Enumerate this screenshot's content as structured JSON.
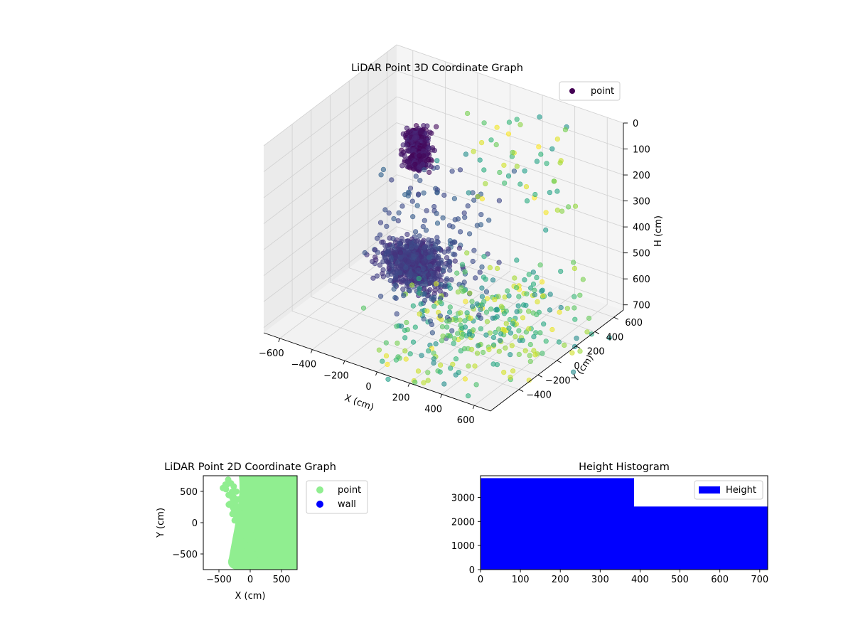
{
  "chart_data": [
    {
      "type": "scatter",
      "title": "LiDAR Point 3D Coordinate Graph",
      "xlabel": "X (cm)",
      "ylabel": "Y (cm)",
      "zlabel": "H (cm)",
      "xlim": [
        -700,
        700
      ],
      "ylim": [
        -700,
        700
      ],
      "zlim": [
        0,
        720
      ],
      "z_inverted": true,
      "x_ticks": [
        -600,
        -400,
        -200,
        0,
        200,
        400,
        600
      ],
      "y_ticks": [
        -400,
        -200,
        0,
        200,
        400,
        600
      ],
      "z_ticks": [
        0,
        100,
        200,
        300,
        400,
        500,
        600,
        700
      ],
      "colormap": "viridis",
      "grid": true,
      "legend": {
        "position": "top-right",
        "entries": [
          {
            "label": "point",
            "color": "#440154"
          }
        ]
      },
      "series": [
        {
          "name": "point",
          "clusters": [
            {
              "x": [
                -250,
                -120
              ],
              "y": [
                -30,
                120
              ],
              "h": [
                40,
                180
              ],
              "count": 400,
              "color_t": 0.0
            },
            {
              "x": [
                -280,
                40
              ],
              "y": [
                -260,
                40
              ],
              "h": [
                430,
                560
              ],
              "count": 700,
              "color_t": 0.12
            },
            {
              "x": [
                -260,
                260
              ],
              "y": [
                -350,
                200
              ],
              "h": [
                150,
                700
              ],
              "count": 160,
              "color_t": 0.2
            },
            {
              "x": [
                -150,
                700
              ],
              "y": [
                -700,
                650
              ],
              "h": [
                600,
                720
              ],
              "count": 300,
              "color_t": 0.45
            },
            {
              "x": [
                -100,
                700
              ],
              "y": [
                100,
                700
              ],
              "h": [
                0,
                300
              ],
              "count": 55,
              "color_t": 0.48
            }
          ]
        }
      ]
    },
    {
      "type": "scatter",
      "title": "LiDAR Point 2D Coordinate Graph",
      "xlabel": "X (cm)",
      "ylabel": "Y (cm)",
      "xlim": [
        -750,
        750
      ],
      "ylim": [
        -750,
        750
      ],
      "x_ticks": [
        -500,
        0,
        500
      ],
      "y_ticks": [
        -500,
        0,
        500
      ],
      "legend": {
        "position": "outside-right",
        "entries": [
          {
            "label": "point",
            "color": "#90ee90"
          },
          {
            "label": "wall",
            "color": "#0000ff"
          }
        ]
      }
    },
    {
      "type": "bar",
      "title": "Height Histogram",
      "xlim": [
        0,
        720
      ],
      "ylim": [
        0,
        3900
      ],
      "x_ticks": [
        0,
        100,
        200,
        300,
        400,
        500,
        600,
        700
      ],
      "y_ticks": [
        0,
        1000,
        2000,
        3000
      ],
      "bins": [
        {
          "start": 0,
          "end": 385,
          "count": 3800
        },
        {
          "start": 385,
          "end": 720,
          "count": 2620
        }
      ],
      "color": "#0000ff",
      "legend": {
        "position": "top-right",
        "entries": [
          {
            "label": "Height",
            "color": "#0000ff"
          }
        ]
      }
    }
  ]
}
